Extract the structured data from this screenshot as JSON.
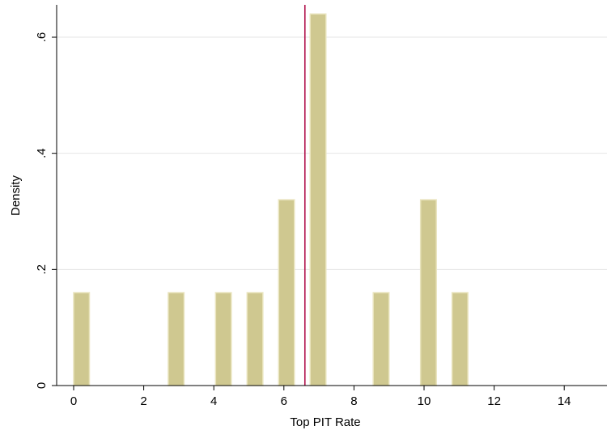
{
  "chart_data": {
    "type": "bar",
    "title": "",
    "xlabel": "Top PIT Rate",
    "ylabel": "Density",
    "xlim": [
      -0.6,
      15.2
    ],
    "ylim": [
      0,
      0.66
    ],
    "x_ticks": [
      0,
      2,
      4,
      6,
      8,
      10,
      12,
      14
    ],
    "x_tick_labels": [
      "0",
      "2",
      "4",
      "6",
      "8",
      "10",
      "12",
      "14"
    ],
    "y_ticks": [
      0,
      0.2,
      0.4,
      0.6
    ],
    "y_tick_labels": [
      "0",
      ".2",
      ".4",
      ".6"
    ],
    "bin_width": 0.45,
    "bins": [
      {
        "x": 0.225,
        "density": 0.16
      },
      {
        "x": 2.925,
        "density": 0.16
      },
      {
        "x": 4.275,
        "density": 0.16
      },
      {
        "x": 5.175,
        "density": 0.16
      },
      {
        "x": 6.075,
        "density": 0.32
      },
      {
        "x": 6.975,
        "density": 0.64
      },
      {
        "x": 8.775,
        "density": 0.16
      },
      {
        "x": 10.125,
        "density": 0.32
      },
      {
        "x": 11.025,
        "density": 0.16
      }
    ],
    "reference_line": {
      "x": 6.6,
      "color": "#b0104a"
    },
    "grid": true,
    "bar_fill": "#cfc890",
    "bar_stroke": "#e9e4bd"
  }
}
